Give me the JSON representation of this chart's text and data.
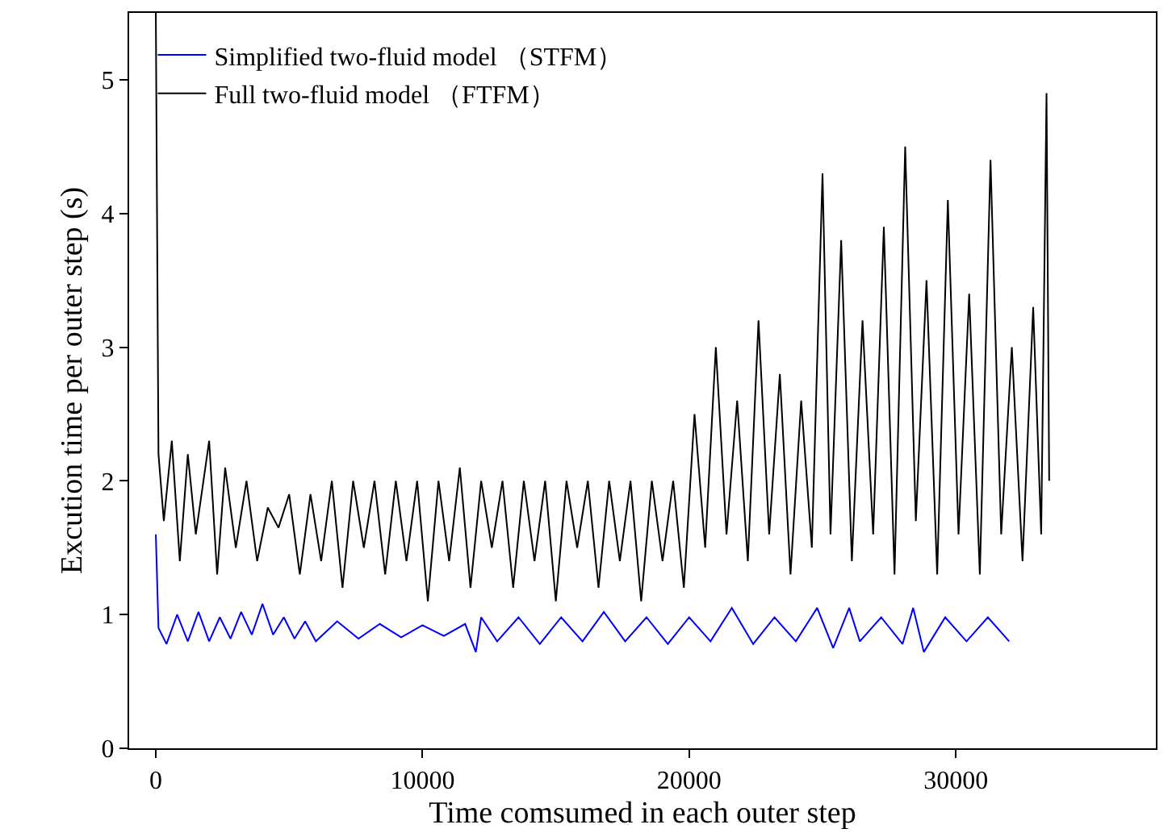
{
  "chart_data": {
    "type": "line",
    "xlabel": "Time comsumed in each outer step",
    "ylabel": "Excution time per outer step (s)",
    "xlim": [
      -1000,
      37500
    ],
    "ylim": [
      0,
      5.5
    ],
    "xticks": [
      0,
      10000,
      20000,
      30000
    ],
    "yticks": [
      0,
      1,
      2,
      3,
      4,
      5
    ],
    "legend": "top left",
    "marker": "none",
    "line_style": "solid",
    "series": [
      {
        "name": "Simplified two-fluid model （STFM）",
        "color": "#0000ff",
        "x": [
          0,
          100,
          400,
          800,
          1200,
          1600,
          2000,
          2400,
          2800,
          3200,
          3600,
          4000,
          4400,
          4800,
          5200,
          5600,
          6000,
          6800,
          7600,
          8400,
          9200,
          10000,
          10800,
          11600,
          12000,
          12200,
          12800,
          13600,
          14400,
          15200,
          16000,
          16800,
          17600,
          18400,
          19200,
          20000,
          20800,
          21600,
          22400,
          23200,
          24000,
          24800,
          25400,
          26000,
          26400,
          27200,
          28000,
          28400,
          28800,
          29600,
          30400,
          31200,
          32000
        ],
        "values": [
          1.6,
          0.9,
          0.78,
          1.0,
          0.8,
          1.02,
          0.8,
          0.98,
          0.82,
          1.02,
          0.85,
          1.08,
          0.85,
          0.98,
          0.82,
          0.95,
          0.8,
          0.95,
          0.82,
          0.93,
          0.83,
          0.92,
          0.84,
          0.93,
          0.72,
          0.98,
          0.8,
          0.98,
          0.78,
          0.98,
          0.8,
          1.02,
          0.8,
          0.98,
          0.78,
          0.98,
          0.8,
          1.05,
          0.78,
          0.98,
          0.8,
          1.05,
          0.75,
          1.05,
          0.8,
          0.98,
          0.78,
          1.05,
          0.72,
          0.98,
          0.8,
          0.98,
          0.8
        ]
      },
      {
        "name": "Full two-fluid model （FTFM）",
        "color": "#000000",
        "x": [
          0,
          100,
          300,
          600,
          900,
          1200,
          1500,
          2000,
          2300,
          2600,
          3000,
          3400,
          3800,
          4200,
          4600,
          5000,
          5400,
          5800,
          6200,
          6600,
          7000,
          7400,
          7800,
          8200,
          8600,
          9000,
          9400,
          9800,
          10200,
          10600,
          11000,
          11400,
          11800,
          12200,
          12600,
          13000,
          13400,
          13800,
          14200,
          14600,
          15000,
          15400,
          15800,
          16200,
          16600,
          17000,
          17400,
          17800,
          18200,
          18600,
          19000,
          19400,
          19800,
          20200,
          20600,
          21000,
          21400,
          21800,
          22200,
          22600,
          23000,
          23400,
          23800,
          24200,
          24600,
          25000,
          25300,
          25700,
          26100,
          26500,
          26900,
          27300,
          27700,
          28100,
          28500,
          28900,
          29300,
          29700,
          30100,
          30500,
          30900,
          31300,
          31700,
          32100,
          32500,
          32900,
          33200,
          33400,
          33500
        ],
        "values": [
          5.5,
          2.2,
          1.7,
          2.3,
          1.4,
          2.2,
          1.6,
          2.3,
          1.3,
          2.1,
          1.5,
          2.0,
          1.4,
          1.8,
          1.65,
          1.9,
          1.3,
          1.9,
          1.4,
          2.0,
          1.2,
          2.0,
          1.5,
          2.0,
          1.3,
          2.0,
          1.4,
          2.0,
          1.1,
          2.0,
          1.4,
          2.1,
          1.2,
          2.0,
          1.5,
          2.0,
          1.2,
          2.0,
          1.4,
          2.0,
          1.1,
          2.0,
          1.5,
          2.0,
          1.2,
          2.0,
          1.4,
          2.0,
          1.1,
          2.0,
          1.4,
          2.0,
          1.2,
          2.5,
          1.5,
          3.0,
          1.6,
          2.6,
          1.4,
          3.2,
          1.6,
          2.8,
          1.3,
          2.6,
          1.5,
          4.3,
          1.6,
          3.8,
          1.4,
          3.2,
          1.6,
          3.9,
          1.3,
          4.5,
          1.7,
          3.5,
          1.3,
          4.1,
          1.6,
          3.4,
          1.3,
          4.4,
          1.6,
          3.0,
          1.4,
          3.3,
          1.6,
          4.9,
          2.0
        ]
      }
    ]
  }
}
